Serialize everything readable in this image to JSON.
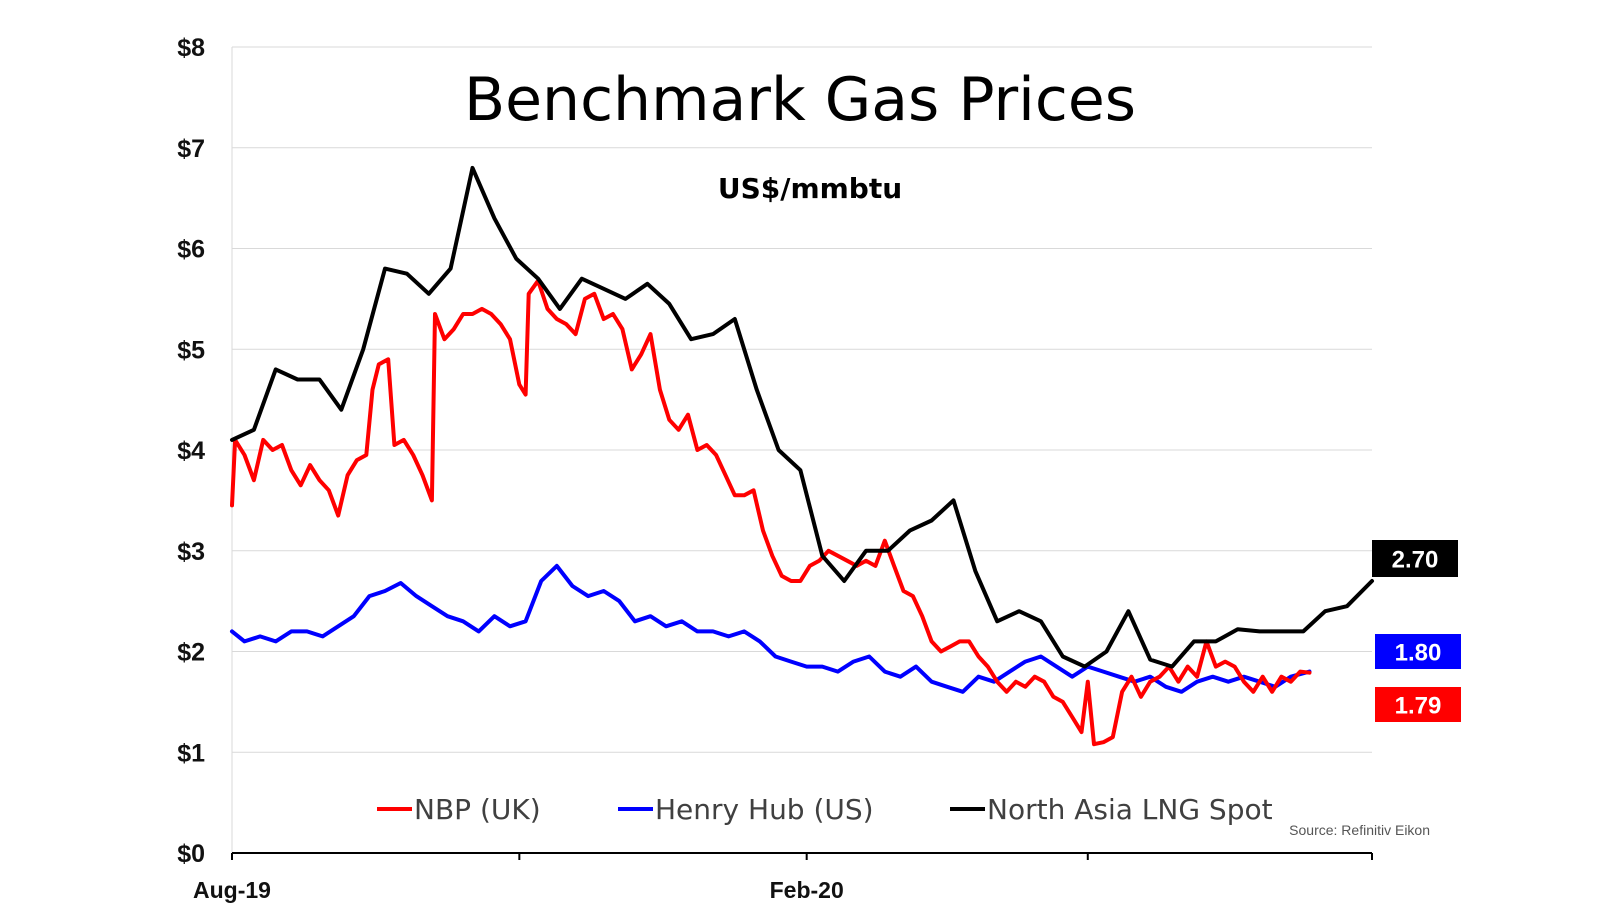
{
  "chart_data": {
    "type": "line",
    "title": "Benchmark Gas Prices",
    "subtitle": "US$/mmbtu",
    "source": "Source: Refinitiv Eikon",
    "ylim": [
      0,
      8
    ],
    "y_ticks": [
      "$0",
      "$1",
      "$2",
      "$3",
      "$4",
      "$5",
      "$6",
      "$7",
      "$8"
    ],
    "x_range": [
      "2019-08-01",
      "2020-07-31"
    ],
    "x_tick_labels": [
      {
        "date": "2019-08-01",
        "label": "Aug-19"
      },
      {
        "date": "2020-02-01",
        "label": "Feb-20"
      }
    ],
    "x_minor_ticks": [
      "2019-11-01",
      "2020-05-01"
    ],
    "grid": "horizontal",
    "legend_position": "bottom",
    "series": [
      {
        "name": "NBP (UK)",
        "color": "#ff0000",
        "end_label": "1.79",
        "points": [
          [
            "2019-08-01",
            3.45
          ],
          [
            "2019-08-02",
            4.1
          ],
          [
            "2019-08-05",
            3.95
          ],
          [
            "2019-08-08",
            3.7
          ],
          [
            "2019-08-11",
            4.1
          ],
          [
            "2019-08-14",
            4.0
          ],
          [
            "2019-08-17",
            4.05
          ],
          [
            "2019-08-20",
            3.8
          ],
          [
            "2019-08-23",
            3.65
          ],
          [
            "2019-08-26",
            3.85
          ],
          [
            "2019-08-29",
            3.7
          ],
          [
            "2019-09-01",
            3.6
          ],
          [
            "2019-09-04",
            3.35
          ],
          [
            "2019-09-07",
            3.75
          ],
          [
            "2019-09-10",
            3.9
          ],
          [
            "2019-09-13",
            3.95
          ],
          [
            "2019-09-15",
            4.6
          ],
          [
            "2019-09-17",
            4.85
          ],
          [
            "2019-09-20",
            4.9
          ],
          [
            "2019-09-22",
            4.05
          ],
          [
            "2019-09-25",
            4.1
          ],
          [
            "2019-09-28",
            3.95
          ],
          [
            "2019-10-01",
            3.75
          ],
          [
            "2019-10-04",
            3.5
          ],
          [
            "2019-10-05",
            5.35
          ],
          [
            "2019-10-08",
            5.1
          ],
          [
            "2019-10-11",
            5.2
          ],
          [
            "2019-10-14",
            5.35
          ],
          [
            "2019-10-17",
            5.35
          ],
          [
            "2019-10-20",
            5.4
          ],
          [
            "2019-10-23",
            5.35
          ],
          [
            "2019-10-26",
            5.25
          ],
          [
            "2019-10-29",
            5.1
          ],
          [
            "2019-11-01",
            4.65
          ],
          [
            "2019-11-03",
            4.55
          ],
          [
            "2019-11-04",
            5.55
          ],
          [
            "2019-11-07",
            5.68
          ],
          [
            "2019-11-10",
            5.4
          ],
          [
            "2019-11-13",
            5.3
          ],
          [
            "2019-11-16",
            5.25
          ],
          [
            "2019-11-19",
            5.15
          ],
          [
            "2019-11-22",
            5.5
          ],
          [
            "2019-11-25",
            5.55
          ],
          [
            "2019-11-28",
            5.3
          ],
          [
            "2019-12-01",
            5.35
          ],
          [
            "2019-12-04",
            5.2
          ],
          [
            "2019-12-07",
            4.8
          ],
          [
            "2019-12-10",
            4.95
          ],
          [
            "2019-12-13",
            5.15
          ],
          [
            "2019-12-16",
            4.6
          ],
          [
            "2019-12-19",
            4.3
          ],
          [
            "2019-12-22",
            4.2
          ],
          [
            "2019-12-25",
            4.35
          ],
          [
            "2019-12-28",
            4.0
          ],
          [
            "2019-12-31",
            4.05
          ],
          [
            "2020-01-03",
            3.95
          ],
          [
            "2020-01-06",
            3.75
          ],
          [
            "2020-01-09",
            3.55
          ],
          [
            "2020-01-12",
            3.55
          ],
          [
            "2020-01-15",
            3.6
          ],
          [
            "2020-01-18",
            3.2
          ],
          [
            "2020-01-21",
            2.95
          ],
          [
            "2020-01-24",
            2.75
          ],
          [
            "2020-01-27",
            2.7
          ],
          [
            "2020-01-30",
            2.7
          ],
          [
            "2020-02-02",
            2.85
          ],
          [
            "2020-02-05",
            2.9
          ],
          [
            "2020-02-08",
            3.0
          ],
          [
            "2020-02-11",
            2.95
          ],
          [
            "2020-02-14",
            2.9
          ],
          [
            "2020-02-17",
            2.85
          ],
          [
            "2020-02-20",
            2.9
          ],
          [
            "2020-02-23",
            2.85
          ],
          [
            "2020-02-26",
            3.1
          ],
          [
            "2020-02-29",
            2.85
          ],
          [
            "2020-03-03",
            2.6
          ],
          [
            "2020-03-06",
            2.55
          ],
          [
            "2020-03-09",
            2.35
          ],
          [
            "2020-03-12",
            2.1
          ],
          [
            "2020-03-15",
            2.0
          ],
          [
            "2020-03-18",
            2.05
          ],
          [
            "2020-03-21",
            2.1
          ],
          [
            "2020-03-24",
            2.1
          ],
          [
            "2020-03-27",
            1.95
          ],
          [
            "2020-03-30",
            1.85
          ],
          [
            "2020-04-02",
            1.7
          ],
          [
            "2020-04-05",
            1.6
          ],
          [
            "2020-04-08",
            1.7
          ],
          [
            "2020-04-11",
            1.65
          ],
          [
            "2020-04-14",
            1.75
          ],
          [
            "2020-04-17",
            1.7
          ],
          [
            "2020-04-20",
            1.55
          ],
          [
            "2020-04-23",
            1.5
          ],
          [
            "2020-04-26",
            1.35
          ],
          [
            "2020-04-29",
            1.2
          ],
          [
            "2020-05-01",
            1.7
          ],
          [
            "2020-05-03",
            1.08
          ],
          [
            "2020-05-06",
            1.1
          ],
          [
            "2020-05-09",
            1.15
          ],
          [
            "2020-05-12",
            1.6
          ],
          [
            "2020-05-15",
            1.75
          ],
          [
            "2020-05-18",
            1.55
          ],
          [
            "2020-05-21",
            1.7
          ],
          [
            "2020-05-24",
            1.75
          ],
          [
            "2020-05-27",
            1.85
          ],
          [
            "2020-05-30",
            1.7
          ],
          [
            "2020-06-02",
            1.85
          ],
          [
            "2020-06-05",
            1.75
          ],
          [
            "2020-06-08",
            2.1
          ],
          [
            "2020-06-11",
            1.85
          ],
          [
            "2020-06-14",
            1.9
          ],
          [
            "2020-06-17",
            1.85
          ],
          [
            "2020-06-20",
            1.7
          ],
          [
            "2020-06-23",
            1.6
          ],
          [
            "2020-06-26",
            1.75
          ],
          [
            "2020-06-29",
            1.6
          ],
          [
            "2020-07-02",
            1.75
          ],
          [
            "2020-07-05",
            1.7
          ],
          [
            "2020-07-08",
            1.8
          ],
          [
            "2020-07-11",
            1.79
          ]
        ]
      },
      {
        "name": "Henry Hub (US)",
        "color": "#0000ff",
        "end_label": "1.80",
        "points": [
          [
            "2019-08-01",
            2.2
          ],
          [
            "2019-08-05",
            2.1
          ],
          [
            "2019-08-10",
            2.15
          ],
          [
            "2019-08-15",
            2.1
          ],
          [
            "2019-08-20",
            2.2
          ],
          [
            "2019-08-25",
            2.2
          ],
          [
            "2019-08-30",
            2.15
          ],
          [
            "2019-09-04",
            2.25
          ],
          [
            "2019-09-09",
            2.35
          ],
          [
            "2019-09-14",
            2.55
          ],
          [
            "2019-09-19",
            2.6
          ],
          [
            "2019-09-24",
            2.68
          ],
          [
            "2019-09-29",
            2.55
          ],
          [
            "2019-10-04",
            2.45
          ],
          [
            "2019-10-09",
            2.35
          ],
          [
            "2019-10-14",
            2.3
          ],
          [
            "2019-10-19",
            2.2
          ],
          [
            "2019-10-24",
            2.35
          ],
          [
            "2019-10-29",
            2.25
          ],
          [
            "2019-11-03",
            2.3
          ],
          [
            "2019-11-08",
            2.7
          ],
          [
            "2019-11-13",
            2.85
          ],
          [
            "2019-11-18",
            2.65
          ],
          [
            "2019-11-23",
            2.55
          ],
          [
            "2019-11-28",
            2.6
          ],
          [
            "2019-12-03",
            2.5
          ],
          [
            "2019-12-08",
            2.3
          ],
          [
            "2019-12-13",
            2.35
          ],
          [
            "2019-12-18",
            2.25
          ],
          [
            "2019-12-23",
            2.3
          ],
          [
            "2019-12-28",
            2.2
          ],
          [
            "2020-01-02",
            2.2
          ],
          [
            "2020-01-07",
            2.15
          ],
          [
            "2020-01-12",
            2.2
          ],
          [
            "2020-01-17",
            2.1
          ],
          [
            "2020-01-22",
            1.95
          ],
          [
            "2020-01-27",
            1.9
          ],
          [
            "2020-02-01",
            1.85
          ],
          [
            "2020-02-06",
            1.85
          ],
          [
            "2020-02-11",
            1.8
          ],
          [
            "2020-02-16",
            1.9
          ],
          [
            "2020-02-21",
            1.95
          ],
          [
            "2020-02-26",
            1.8
          ],
          [
            "2020-03-02",
            1.75
          ],
          [
            "2020-03-07",
            1.85
          ],
          [
            "2020-03-12",
            1.7
          ],
          [
            "2020-03-17",
            1.65
          ],
          [
            "2020-03-22",
            1.6
          ],
          [
            "2020-03-27",
            1.75
          ],
          [
            "2020-04-01",
            1.7
          ],
          [
            "2020-04-06",
            1.8
          ],
          [
            "2020-04-11",
            1.9
          ],
          [
            "2020-04-16",
            1.95
          ],
          [
            "2020-04-21",
            1.85
          ],
          [
            "2020-04-26",
            1.75
          ],
          [
            "2020-05-01",
            1.85
          ],
          [
            "2020-05-06",
            1.8
          ],
          [
            "2020-05-11",
            1.75
          ],
          [
            "2020-05-16",
            1.7
          ],
          [
            "2020-05-21",
            1.75
          ],
          [
            "2020-05-26",
            1.65
          ],
          [
            "2020-05-31",
            1.6
          ],
          [
            "2020-06-05",
            1.7
          ],
          [
            "2020-06-10",
            1.75
          ],
          [
            "2020-06-15",
            1.7
          ],
          [
            "2020-06-20",
            1.75
          ],
          [
            "2020-06-25",
            1.7
          ],
          [
            "2020-06-30",
            1.65
          ],
          [
            "2020-07-05",
            1.75
          ],
          [
            "2020-07-11",
            1.8
          ]
        ]
      },
      {
        "name": "North Asia LNG Spot",
        "color": "#000000",
        "end_label": "2.70",
        "points": [
          [
            "2019-08-01",
            4.1
          ],
          [
            "2019-08-08",
            4.2
          ],
          [
            "2019-08-15",
            4.8
          ],
          [
            "2019-08-22",
            4.7
          ],
          [
            "2019-08-29",
            4.7
          ],
          [
            "2019-09-05",
            4.4
          ],
          [
            "2019-09-12",
            5.0
          ],
          [
            "2019-09-19",
            5.8
          ],
          [
            "2019-09-26",
            5.75
          ],
          [
            "2019-10-03",
            5.55
          ],
          [
            "2019-10-10",
            5.8
          ],
          [
            "2019-10-17",
            6.8
          ],
          [
            "2019-10-24",
            6.3
          ],
          [
            "2019-10-31",
            5.9
          ],
          [
            "2019-11-07",
            5.7
          ],
          [
            "2019-11-14",
            5.4
          ],
          [
            "2019-11-21",
            5.7
          ],
          [
            "2019-11-28",
            5.6
          ],
          [
            "2019-12-05",
            5.5
          ],
          [
            "2019-12-12",
            5.65
          ],
          [
            "2019-12-19",
            5.45
          ],
          [
            "2019-12-26",
            5.1
          ],
          [
            "2020-01-02",
            5.15
          ],
          [
            "2020-01-09",
            5.3
          ],
          [
            "2020-01-16",
            4.6
          ],
          [
            "2020-01-23",
            4.0
          ],
          [
            "2020-01-30",
            3.8
          ],
          [
            "2020-02-06",
            2.95
          ],
          [
            "2020-02-13",
            2.7
          ],
          [
            "2020-02-20",
            3.0
          ],
          [
            "2020-02-27",
            3.0
          ],
          [
            "2020-03-05",
            3.2
          ],
          [
            "2020-03-12",
            3.3
          ],
          [
            "2020-03-19",
            3.5
          ],
          [
            "2020-03-26",
            2.8
          ],
          [
            "2020-04-02",
            2.3
          ],
          [
            "2020-04-09",
            2.4
          ],
          [
            "2020-04-16",
            2.3
          ],
          [
            "2020-04-23",
            1.95
          ],
          [
            "2020-04-30",
            1.85
          ],
          [
            "2020-05-07",
            2.0
          ],
          [
            "2020-05-14",
            2.4
          ],
          [
            "2020-05-21",
            1.92
          ],
          [
            "2020-05-28",
            1.85
          ],
          [
            "2020-06-04",
            2.1
          ],
          [
            "2020-06-11",
            2.1
          ],
          [
            "2020-06-18",
            2.22
          ],
          [
            "2020-06-25",
            2.2
          ],
          [
            "2020-07-02",
            2.2
          ],
          [
            "2020-07-09",
            2.2
          ],
          [
            "2020-07-16",
            2.4
          ],
          [
            "2020-07-23",
            2.45
          ],
          [
            "2020-07-31",
            2.7
          ]
        ]
      }
    ]
  }
}
